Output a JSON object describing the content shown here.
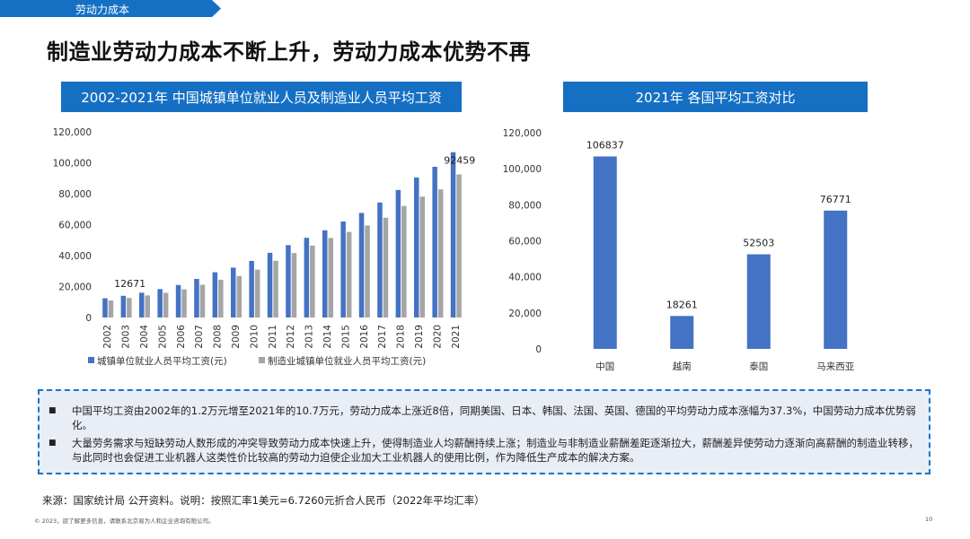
{
  "section_tag": "劳动力成本",
  "page_title": "制造业劳动力成本不断上升，劳动力成本优势不再",
  "colors": {
    "accent": "#1570c4",
    "series_blue": "#4472c4",
    "series_gray": "#a5a5a5",
    "box_border": "#1a74c9",
    "box_bg": "#e9eef6"
  },
  "chart_data": [
    {
      "type": "bar",
      "title": "2002-2021年 中国城镇单位就业人员及制造业人员平均工资",
      "categories": [
        "2002",
        "2003",
        "2004",
        "2005",
        "2006",
        "2007",
        "2008",
        "2009",
        "2010",
        "2011",
        "2012",
        "2013",
        "2014",
        "2015",
        "2016",
        "2017",
        "2018",
        "2019",
        "2020",
        "2021"
      ],
      "series": [
        {
          "name": "城镇单位就业人员平均工资(元)",
          "values": [
            12422,
            14040,
            16024,
            18364,
            21001,
            24932,
            29229,
            32244,
            36539,
            41799,
            46769,
            51483,
            56360,
            62029,
            67569,
            74318,
            82413,
            90501,
            97379,
            106837
          ]
        },
        {
          "name": "制造业城镇单位就业人员平均工资(元)",
          "values": [
            11001,
            12671,
            14251,
            15934,
            18225,
            21144,
            24404,
            26810,
            30916,
            36665,
            41650,
            46431,
            51369,
            55324,
            59470,
            64452,
            72088,
            78147,
            82783,
            92459
          ]
        }
      ],
      "data_labels": [
        {
          "series": 1,
          "index": 1,
          "text": "12671"
        },
        {
          "series": 1,
          "index": 19,
          "text": "92459"
        }
      ],
      "ylim": [
        0,
        120000
      ],
      "yticks": [
        "0",
        "20,000",
        "40,000",
        "60,000",
        "80,000",
        "100,000",
        "120,000"
      ],
      "xlabel": "",
      "ylabel": "",
      "legend": "bottom"
    },
    {
      "type": "bar",
      "title": "2021年 各国平均工资对比",
      "categories": [
        "中国",
        "越南",
        "泰国",
        "马来西亚"
      ],
      "series": [
        {
          "name": "平均工资",
          "values": [
            106837,
            18261,
            52503,
            76771
          ]
        }
      ],
      "data_labels": [
        "106837",
        "18261",
        "52503",
        "76771"
      ],
      "ylim": [
        0,
        120000
      ],
      "yticks": [
        "0",
        "20,000",
        "40,000",
        "60,000",
        "80,000",
        "100,000",
        "120,000"
      ],
      "xlabel": "",
      "ylabel": "",
      "legend": "none"
    }
  ],
  "notes": {
    "bullet_symbol": "■",
    "items": [
      "中国平均工资由2002年的1.2万元增至2021年的10.7万元，劳动力成本上涨近8倍，同期美国、日本、韩国、法国、英国、德国的平均劳动力成本涨幅为37.3%，中国劳动力成本优势弱化。",
      "大量劳务需求与短缺劳动人数形成的冲突导致劳动力成本快速上升，使得制造业人均薪酬持续上涨；制造业与非制造业薪酬差距逐渐拉大，薪酬差异使劳动力逐渐向高薪酬的制造业转移，与此同时也会促进工业机器人这类性价比较高的劳动力迫使企业加大工业机器人的使用比例，作为降低生产成本的解决方案。"
    ]
  },
  "source": "来源：国家统计局 公开资料。说明：按照汇率1美元=6.7260元折合人民币（2022年平均汇率）",
  "footer": "© 2023，欲了解更多信息，请联系北京易为人和企业咨询有限公司。",
  "page_number": "10"
}
